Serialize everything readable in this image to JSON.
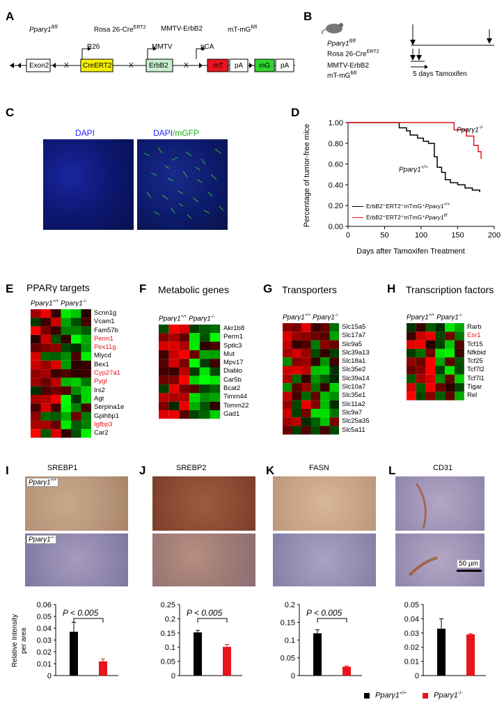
{
  "panels": {
    "A": {
      "label": "A",
      "genotype_fl": "Pparγ1",
      "genotype_fl_sup": "fl/fl",
      "rosa": "Rosa 26-Cre",
      "rosa_sup": "ERT2",
      "mmtv": "MMTV-ErbB2",
      "mtmg": "mT-mG",
      "mtmg_sup": "fl/fl",
      "exon2": "Exon2",
      "r26": "R26",
      "creert2": "CreERT2",
      "mmtv_short": "MMTV",
      "erbb2": "ErbB2",
      "pca": "pCA",
      "mT": "mT",
      "pA": "pA",
      "mG": "mG",
      "x": "X"
    },
    "B": {
      "label": "B",
      "line1": "Pparγ1",
      "line1_sup": "fl/fl",
      "line2": "Rosa 26-Cre",
      "line2_sup": "ERT2",
      "line3": "MMTV-ErbB2",
      "line4": "mT-mG",
      "line4_sup": "fl/fl",
      "tam": "5 days Tamoxifen"
    },
    "C": {
      "label": "C",
      "img1_title": "DAPI",
      "img2_title_a": "DAPI",
      "img2_title_b": "/mGFP"
    },
    "D": {
      "label": "D",
      "ylabel": "Percentage of tumor-free mice",
      "xlabel": "Days after Tamoxifen Treatment",
      "annot_ko": "Pparγ1",
      "annot_ko_sup": "-/-",
      "annot_wt": "Pparγ1",
      "annot_wt_sup": "+/+",
      "legend_wt": "ErbB2⁺ERT2⁺mTmG⁺",
      "legend_wt_gene": "Pparγ1",
      "legend_wt_sup": "+/+",
      "legend_ko": "ErbB2⁺ERT2⁺mTmG⁺",
      "legend_ko_gene": "Pparγ1",
      "legend_ko_sup": "f/f"
    },
    "E": {
      "label": "E",
      "title": "PPARγ targets"
    },
    "F": {
      "label": "F",
      "title": "Metabolic genes"
    },
    "G": {
      "label": "G",
      "title": "Transporters"
    },
    "H": {
      "label": "H",
      "title": "Transcription factors"
    },
    "I": {
      "label": "I",
      "title": "SREBP1",
      "img_top_label": "Pparγ1",
      "img_top_sup": "+/+",
      "img_bot_label": "Pparγ1",
      "img_bot_sup": "-/-",
      "ylabel1": "Relative Intensity",
      "ylabel2": "per area",
      "pval": "P < 0.005"
    },
    "J": {
      "label": "J",
      "title": "SREBP2",
      "pval": "P < 0.005"
    },
    "K": {
      "label": "K",
      "title": "FASN",
      "pval": "P < 0.005"
    },
    "L": {
      "label": "L",
      "title": "CD31",
      "scalebar": "50 µm"
    }
  },
  "heatmap_header": {
    "wt": "Pparγ1",
    "wt_sup": "+/+",
    "ko": "Pparγ1",
    "ko_sup": "-/-"
  },
  "genes": {
    "E": [
      {
        "name": "Scnn1g",
        "color": "#000000"
      },
      {
        "name": "Vcam1",
        "color": "#000000"
      },
      {
        "name": "Fam57b",
        "color": "#000000"
      },
      {
        "name": "Perm1",
        "color": "#e8141c"
      },
      {
        "name": "Pex11g",
        "color": "#e8141c"
      },
      {
        "name": "Mlycd",
        "color": "#000000"
      },
      {
        "name": "Bex1",
        "color": "#000000"
      },
      {
        "name": "Cyp27a1",
        "color": "#e8141c"
      },
      {
        "name": "Pygl",
        "color": "#e8141c"
      },
      {
        "name": "Irs2",
        "color": "#000000"
      },
      {
        "name": "Agt",
        "color": "#000000"
      },
      {
        "name": "Serpina1e",
        "color": "#000000"
      },
      {
        "name": "Gpihbp1",
        "color": "#000000"
      },
      {
        "name": "Igfbp3",
        "color": "#e8141c"
      },
      {
        "name": "Car2",
        "color": "#000000"
      }
    ],
    "F": [
      "Akr1b8",
      "Perm1",
      "Sptlc3",
      "Mut",
      "Mpv17",
      "Diablo",
      "Car5b",
      "Bcat2",
      "Timm44",
      "Tomm22",
      "Gad1"
    ],
    "G": [
      "Slc15a5",
      "Slc17a7",
      "Slc9a5",
      "Slc39a13",
      "Slc18a1",
      "Slc35e2",
      "Slc39a14",
      "Slc10a7",
      "Slc35e1",
      "Slc11a2",
      "Slc9a7",
      "Slc25a35",
      "Slc5a11"
    ],
    "H": [
      {
        "name": "Rarb",
        "color": "#000000"
      },
      {
        "name": "Esr1",
        "color": "#e8141c"
      },
      {
        "name": "Tcf15",
        "color": "#000000"
      },
      {
        "name": "Nfkbid",
        "color": "#000000"
      },
      {
        "name": "Tcf25",
        "color": "#000000"
      },
      {
        "name": "Tcf7l2",
        "color": "#000000"
      },
      {
        "name": "Tcf7l1",
        "color": "#000000"
      },
      {
        "name": "Tigar",
        "color": "#000000"
      },
      {
        "name": "Rel",
        "color": "#000000"
      }
    ]
  },
  "legend": {
    "wt": "Pparγ1",
    "wt_sup": "+/+",
    "ko": "Pparγ1",
    "ko_sup": "-/-",
    "wt_color": "#000000",
    "ko_color": "#e8141c"
  },
  "chart_data": [
    {
      "panel": "D",
      "type": "line",
      "xlim": [
        0,
        200
      ],
      "ylim": [
        0,
        1.0
      ],
      "xticks": [
        0,
        50,
        100,
        150,
        200
      ],
      "yticks": [
        "0.00",
        "0.20",
        "0.40",
        "0.60",
        "0.80",
        "1.00"
      ],
      "series": [
        {
          "name": "ErbB2⁺ERT2⁺mTmG⁺Pparγ1+/+",
          "color": "#000000",
          "x": [
            0,
            60,
            70,
            80,
            85,
            95,
            103,
            110,
            118,
            122,
            128,
            133,
            140,
            150,
            160,
            170,
            180
          ],
          "y": [
            1.0,
            1.0,
            0.95,
            0.92,
            0.88,
            0.85,
            0.82,
            0.8,
            0.67,
            0.57,
            0.52,
            0.45,
            0.42,
            0.4,
            0.37,
            0.35,
            0.33
          ]
        },
        {
          "name": "ErbB2⁺ERT2⁺mTmG⁺Pparγ1f/f",
          "color": "#e8141c",
          "x": [
            0,
            95,
            145,
            162,
            172,
            178,
            182
          ],
          "y": [
            1.0,
            1.0,
            0.93,
            0.87,
            0.78,
            0.72,
            0.65
          ]
        }
      ]
    },
    {
      "panel": "I",
      "type": "bar",
      "categories": [
        "Pparγ1+/+",
        "Pparγ1-/-"
      ],
      "values": [
        0.037,
        0.012
      ],
      "errors": [
        0.008,
        0.002
      ],
      "ylim": [
        0,
        0.06
      ],
      "yticks": [
        "0",
        "0.01",
        "0.02",
        "0.03",
        "0.04",
        "0.05",
        "0.06"
      ],
      "ylabel": "Relative Intensity per area"
    },
    {
      "panel": "J",
      "type": "bar",
      "categories": [
        "Pparγ1+/+",
        "Pparγ1-/-"
      ],
      "values": [
        0.152,
        0.101
      ],
      "errors": [
        0.007,
        0.008
      ],
      "ylim": [
        0,
        0.25
      ],
      "yticks": [
        "0",
        "0.05",
        "0.1",
        "0.15",
        "0.2",
        "0.25"
      ]
    },
    {
      "panel": "K",
      "type": "bar",
      "categories": [
        "Pparγ1+/+",
        "Pparγ1-/-"
      ],
      "values": [
        0.119,
        0.025
      ],
      "errors": [
        0.01,
        0.002
      ],
      "ylim": [
        0,
        0.2
      ],
      "yticks": [
        "0",
        "0.05",
        "0.1",
        "0.15",
        "0.2"
      ]
    },
    {
      "panel": "L",
      "type": "bar",
      "categories": [
        "Pparγ1+/+",
        "Pparγ1-/-"
      ],
      "values": [
        0.033,
        0.029
      ],
      "errors": [
        0.007,
        0.0005
      ],
      "ylim": [
        0,
        0.05
      ],
      "yticks": [
        "0",
        "0.01",
        "0.02",
        "0.03",
        "0.04",
        "0.05"
      ]
    }
  ]
}
